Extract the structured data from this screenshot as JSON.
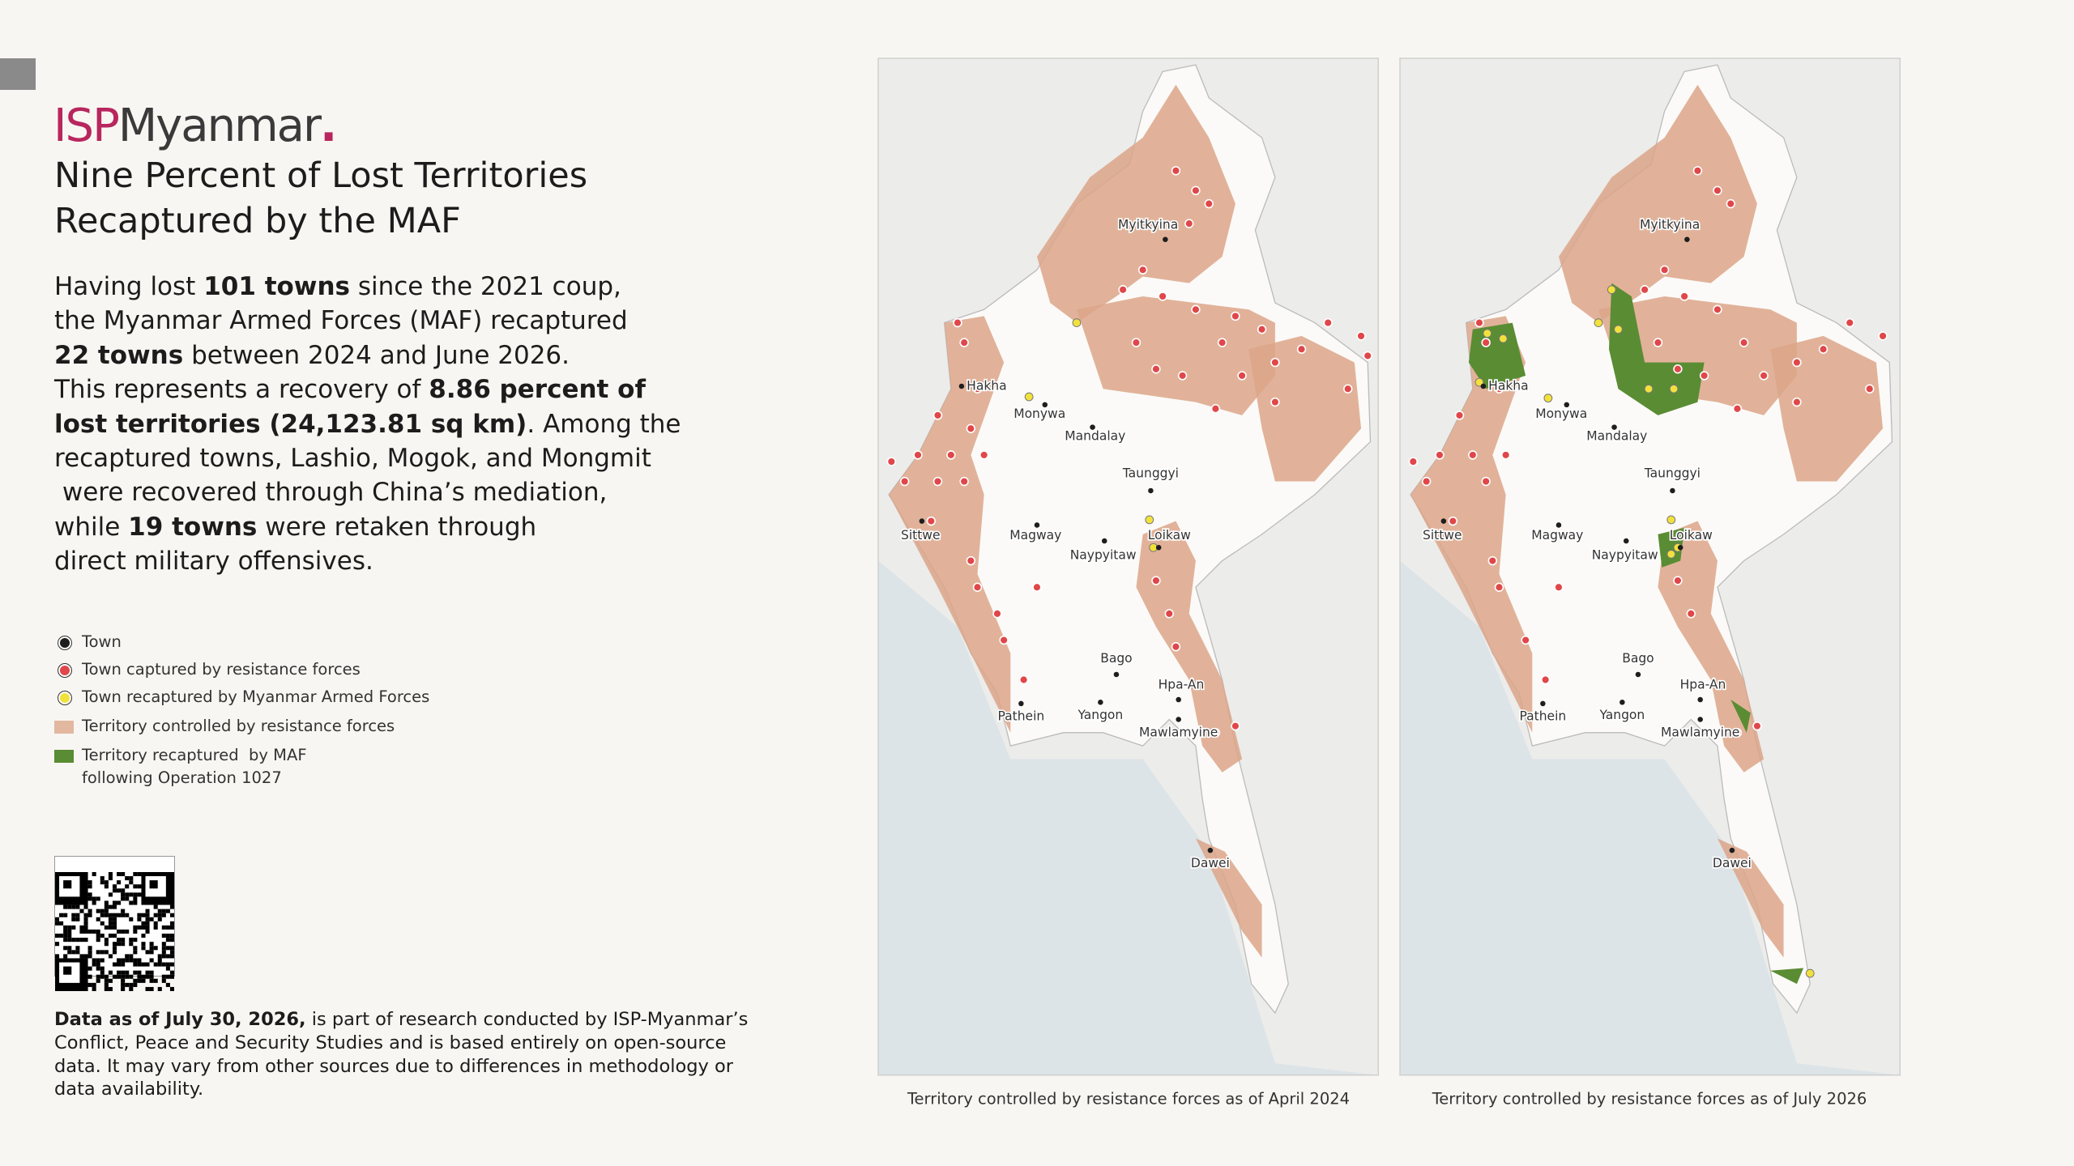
{
  "header": {
    "brand_prefix": "ISP",
    "brand_name": "Myanmar",
    "brand_dot": "."
  },
  "title": [
    "Nine Percent of Lost Territories",
    "Recaptured by the MAF"
  ],
  "body": [
    [
      {
        "text": "Having lost ",
        "bold": false
      },
      {
        "text": "101 towns",
        "bold": true
      },
      {
        "text": " since the 2021 coup,",
        "bold": false
      }
    ],
    [
      {
        "text": "the Myanmar Armed Forces (MAF) recaptured",
        "bold": false
      }
    ],
    [
      {
        "text": "22 towns",
        "bold": true
      },
      {
        "text": " between 2024 and June 2026.",
        "bold": false
      }
    ],
    [
      {
        "text": "This represents a recovery of ",
        "bold": false
      },
      {
        "text": "8.86 percent of",
        "bold": true
      }
    ],
    [
      {
        "text": "lost territories (24,123.81 sq km)",
        "bold": true
      },
      {
        "text": ". Among the",
        "bold": false
      }
    ],
    [
      {
        "text": "recaptured towns, Lashio, Mogok, and Mongmit",
        "bold": false
      }
    ],
    [
      {
        "text": " were recovered through China’s mediation,",
        "bold": false
      }
    ],
    [
      {
        "text": "while ",
        "bold": false
      },
      {
        "text": "19 towns",
        "bold": true
      },
      {
        "text": " were retaken through",
        "bold": false
      }
    ],
    [
      {
        "text": "direct military offensives.",
        "bold": false
      }
    ]
  ],
  "legend": [
    {
      "symbol": "dot",
      "color": "#1e1e1e",
      "lines": [
        "Town"
      ]
    },
    {
      "symbol": "dot",
      "color": "#e0474a",
      "lines": [
        "Town captured by resistance forces"
      ]
    },
    {
      "symbol": "dot",
      "color": "#f2e13c",
      "lines": [
        "Town recaptured by Myanmar Armed Forces"
      ]
    },
    {
      "symbol": "square",
      "color": "#e2b8a0",
      "lines": [
        "Territory controlled by resistance forces"
      ]
    },
    {
      "symbol": "square",
      "color": "#5a8c34",
      "lines": [
        "Territory recaptured  by MAF",
        "following Operation 1027"
      ]
    }
  ],
  "footnote": [
    [
      {
        "text": "Data as of July 30, 2026,",
        "bold": true
      },
      {
        "text": " is part of research conducted by ISP-Myanmar’s",
        "bold": false
      }
    ],
    [
      {
        "text": "Conflict, Peace and Security Studies and is based entirely on open-source",
        "bold": false
      }
    ],
    [
      {
        "text": "data. It may vary from other sources due to differences in methodology or",
        "bold": false
      }
    ],
    [
      {
        "text": "data availability.",
        "bold": false
      }
    ]
  ],
  "maps": [
    {
      "caption": "Territory controlled by resistance forces as of April 2024",
      "towns": [
        "Myitkyina",
        "Hakha",
        "Monywa",
        "Mandalay",
        "Taunggyi",
        "Sittwe",
        "Magway",
        "Naypyitaw",
        "Loikaw",
        "Bago",
        "Hpa-An",
        "Pathein",
        "Yangon",
        "Mawlamyine",
        "Dawei"
      ]
    },
    {
      "caption": "Territory controlled by resistance forces as of July 2026",
      "towns": [
        "Myitkyina",
        "Hakha",
        "Monywa",
        "Mandalay",
        "Taunggyi",
        "Sittwe",
        "Magway",
        "Naypyitaw",
        "Loikaw",
        "Bago",
        "Hpa-An",
        "Pathein",
        "Yangon",
        "Mawlamyine",
        "Dawei"
      ]
    }
  ]
}
